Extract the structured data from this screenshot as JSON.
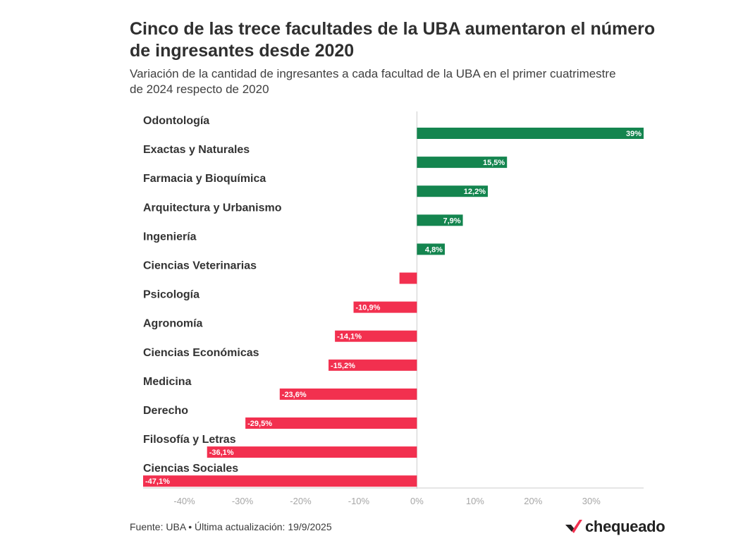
{
  "header": {
    "title": "Cinco de las trece facultades de la UBA aumentaron el número de ingresantes desde 2020",
    "subtitle": "Variación de la cantidad de ingresantes a cada facultad de la UBA en el primer cuatrimestre de 2024 respecto de 2020"
  },
  "footer": {
    "source": "Fuente: UBA • Última actualización: 19/9/2025"
  },
  "logo": {
    "text": "chequeado",
    "icon": "chequeado-logo-icon"
  },
  "colors": {
    "positive": "#14854f",
    "negative": "#f2304f",
    "axis": "#cccccc",
    "tick": "#a6a6a6"
  },
  "chart_data": {
    "type": "bar",
    "orientation": "horizontal",
    "categories": [
      "Odontología",
      "Exactas y Naturales",
      "Farmacia y Bioquímica",
      "Arquitectura y Urbanismo",
      "Ingeniería",
      "Ciencias Veterinarias",
      "Psicología",
      "Agronomía",
      "Ciencias Económicas",
      "Medicina",
      "Derecho",
      "Filosofía y Letras",
      "Ciencias Sociales"
    ],
    "values": [
      39,
      15.5,
      12.2,
      7.9,
      4.8,
      -3,
      -10.9,
      -14.1,
      -15.2,
      -23.6,
      -29.5,
      -36.1,
      -47.1
    ],
    "labels": [
      "39%",
      "15,5%",
      "12,2%",
      "7,9%",
      "4,8%",
      "",
      "-10,9%",
      "-14,1%",
      "-15,2%",
      "-23,6%",
      "-29,5%",
      "-36,1%",
      "-47,1%"
    ],
    "xlim": [
      -47.1,
      39
    ],
    "xticks": [
      -40,
      -30,
      -20,
      -10,
      0,
      10,
      20,
      30
    ],
    "xtick_labels": [
      "-40%",
      "-30%",
      "-20%",
      "-10%",
      "0%",
      "10%",
      "20%",
      "30%"
    ],
    "grid": false,
    "legend": "none"
  }
}
